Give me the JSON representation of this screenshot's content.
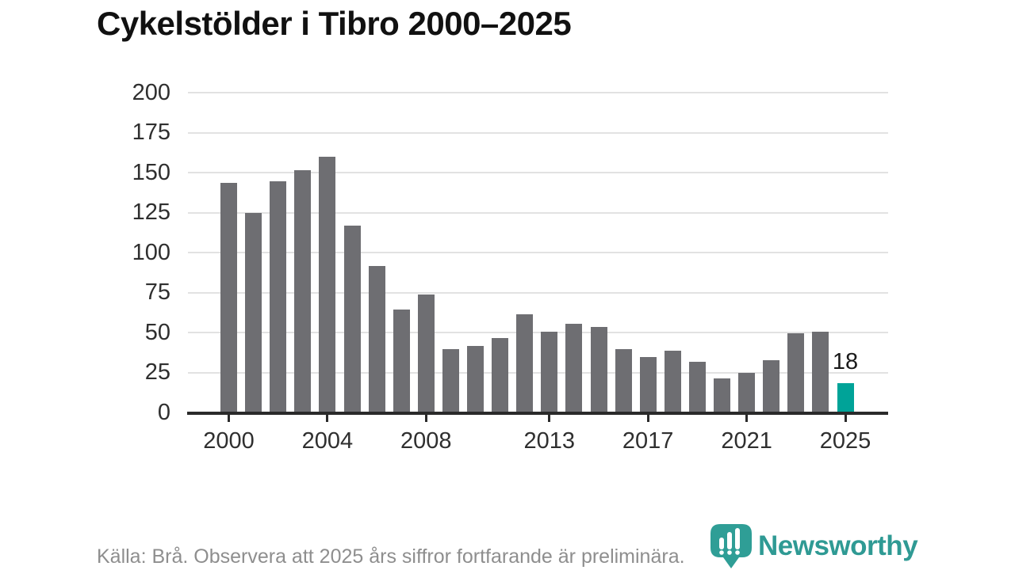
{
  "header": {
    "title": "Cykelstölder i Tibro 2000–2025"
  },
  "chart_data": {
    "type": "bar",
    "title": "Cykelstölder i Tibro 2000–2025",
    "xlabel": "",
    "ylabel": "",
    "x": [
      2000,
      2001,
      2002,
      2003,
      2004,
      2005,
      2006,
      2007,
      2008,
      2009,
      2010,
      2011,
      2012,
      2013,
      2014,
      2015,
      2016,
      2017,
      2018,
      2019,
      2020,
      2021,
      2022,
      2023,
      2024,
      2025
    ],
    "values": [
      143,
      124,
      144,
      151,
      159,
      116,
      91,
      64,
      73,
      39,
      41,
      46,
      61,
      50,
      55,
      53,
      39,
      34,
      38,
      31,
      21,
      24,
      32,
      49,
      50,
      18
    ],
    "x_tick_years": [
      2000,
      2004,
      2008,
      2013,
      2017,
      2021,
      2025
    ],
    "x_tick_labels": [
      "2000",
      "2004",
      "2008",
      "2013",
      "2017",
      "2021",
      "2025"
    ],
    "y_ticks": [
      0,
      25,
      50,
      75,
      100,
      125,
      150,
      175,
      200
    ],
    "ylim": [
      0,
      200
    ],
    "grid": "horizontal",
    "legend": "none",
    "bar_color": "#6e6e72",
    "highlight_year": 2025,
    "highlight_color": "#00a398",
    "highlight_label": "18",
    "source_note": "Källa: Brå. Observera att 2025 års siffror fortfarande är preliminära."
  },
  "footer": {
    "brand": "Newsworthy"
  },
  "icons": {
    "brand_logo": "newsworthy-pin-barchart-icon"
  }
}
